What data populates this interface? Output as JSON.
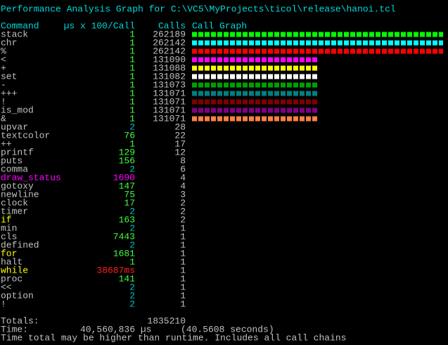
{
  "header": {
    "title": "Performance Analysis Graph for C:\\VC5\\MyProjects\\ticol\\release\\hanoi.tcl"
  },
  "table": {
    "columns": [
      "Command",
      "µs x 100/Call",
      "Calls",
      "Call Graph"
    ],
    "rows": [
      {
        "command": "stack",
        "us": "1",
        "calls": 262189,
        "bar_color": "#00ff00"
      },
      {
        "command": "chr",
        "us": "1",
        "calls": 262142,
        "bar_color": "#00ffff"
      },
      {
        "command": "%",
        "us": "1",
        "calls": 262142,
        "bar_color": "#ff0000"
      },
      {
        "command": "<",
        "us": "1",
        "calls": 131090,
        "bar_color": "#ff00ff"
      },
      {
        "command": "+",
        "us": "1",
        "calls": 131088,
        "bar_color": "#ffff00"
      },
      {
        "command": "set",
        "us": "1",
        "calls": 131082,
        "bar_color": "#ffffff"
      },
      {
        "command": "-",
        "us": "1",
        "calls": 131073,
        "bar_color": "#00a000"
      },
      {
        "command": "+++",
        "us": "1",
        "calls": 131071,
        "bar_color": "#008080"
      },
      {
        "command": "!",
        "us": "1",
        "calls": 131071,
        "bar_color": "#800000"
      },
      {
        "command": "is_mod",
        "us": "1",
        "calls": 131071,
        "bar_color": "#800080"
      },
      {
        "command": "&",
        "us": "1",
        "calls": 131071,
        "bar_color": "#ff8040"
      },
      {
        "command": "upvar",
        "us": "2",
        "calls": 28
      },
      {
        "command": "textcolor",
        "us": "76",
        "calls": 22
      },
      {
        "command": "++",
        "us": "1",
        "calls": 17
      },
      {
        "command": "printf",
        "us": "129",
        "calls": 12
      },
      {
        "command": "puts",
        "us": "156",
        "calls": 8
      },
      {
        "command": "comma",
        "us": "2",
        "calls": 6
      },
      {
        "command": "draw_status",
        "us": "1690",
        "calls": 4,
        "command_color": "#ff00ff",
        "us_color": "#ff00ff"
      },
      {
        "command": "gotoxy",
        "us": "147",
        "calls": 4
      },
      {
        "command": "newline",
        "us": "75",
        "calls": 3
      },
      {
        "command": "clock",
        "us": "17",
        "calls": 2
      },
      {
        "command": "timer",
        "us": "2",
        "calls": 2
      },
      {
        "command": "if",
        "us": "163",
        "calls": 2,
        "command_color": "#ffff00"
      },
      {
        "command": "min",
        "us": "2",
        "calls": 1
      },
      {
        "command": "cls",
        "us": "7443",
        "calls": 1
      },
      {
        "command": "defined",
        "us": "2",
        "calls": 1
      },
      {
        "command": "for",
        "us": "1681",
        "calls": 1,
        "command_color": "#ffff00"
      },
      {
        "command": "halt",
        "us": "1",
        "calls": 1
      },
      {
        "command": "while",
        "us": "38687ms",
        "calls": 1,
        "command_color": "#ffff00",
        "us_color": "#ff2020"
      },
      {
        "command": "proc",
        "us": "141",
        "calls": 1
      },
      {
        "command": "<<",
        "us": "2",
        "calls": 1
      },
      {
        "command": "option",
        "us": "2",
        "calls": 1
      },
      {
        "command": "!",
        "us": "2",
        "calls": 1
      }
    ]
  },
  "footer": {
    "totals_label": "Totals:",
    "totals_calls": 1835210,
    "time_label": "Time:",
    "time_us": "40,560,836 µs",
    "time_seconds": "(40.5608 seconds)",
    "note": "Time total may be higher than runtime. Includes all call chains"
  }
}
